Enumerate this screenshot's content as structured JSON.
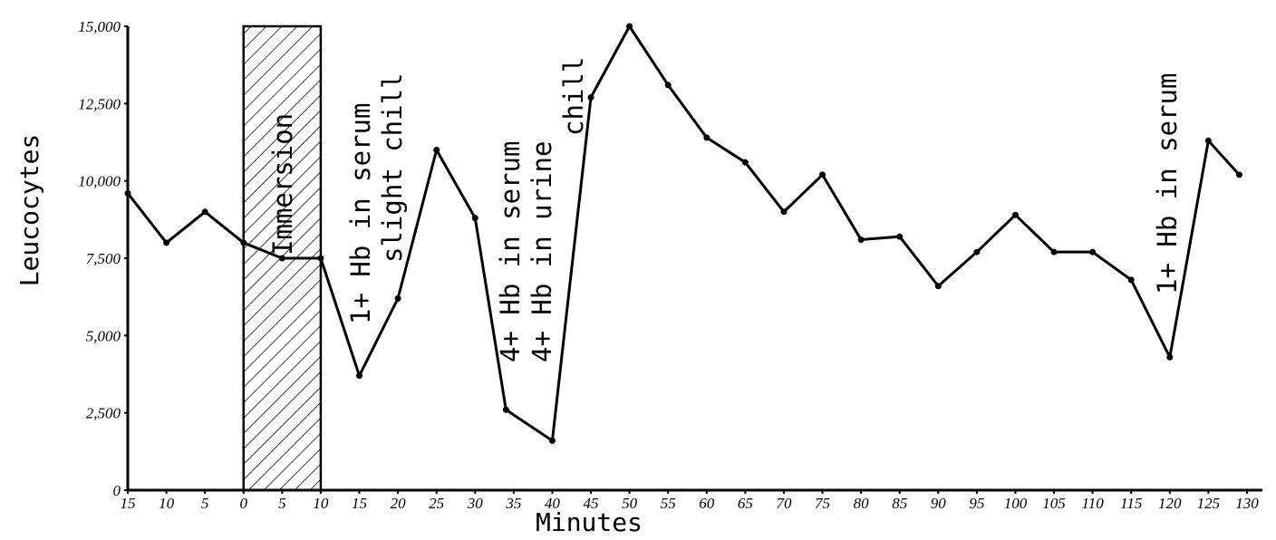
{
  "chart_data": {
    "type": "line",
    "xlabel": "Minutes",
    "ylabel": "Leucocytes",
    "x": [
      -15,
      -10,
      -5,
      0,
      5,
      10,
      15,
      20,
      25,
      30,
      34,
      40,
      45,
      50,
      55,
      60,
      65,
      70,
      75,
      80,
      85,
      90,
      95,
      100,
      105,
      110,
      115,
      120,
      125,
      129
    ],
    "series": [
      {
        "color": "#000000",
        "values": [
          9600,
          8000,
          9000,
          8000,
          7500,
          7500,
          3700,
          6200,
          11000,
          8800,
          2600,
          1600,
          12700,
          15000,
          13100,
          11400,
          10600,
          9000,
          10200,
          8100,
          8200,
          6600,
          7700,
          8900,
          7700,
          7700,
          6800,
          4300,
          11300,
          10200
        ]
      }
    ],
    "xlim": [
      -15,
      132
    ],
    "ylim": [
      0,
      15000
    ],
    "xticks": [
      {
        "value": -15,
        "label": "15"
      },
      {
        "value": -10,
        "label": "10"
      },
      {
        "value": -5,
        "label": "5"
      },
      0,
      5,
      10,
      15,
      20,
      25,
      30,
      35,
      40,
      45,
      50,
      55,
      60,
      65,
      70,
      75,
      80,
      85,
      90,
      95,
      100,
      105,
      110,
      115,
      120,
      125,
      130
    ],
    "yticks": [
      0,
      {
        "value": 2500,
        "label": "2,500"
      },
      {
        "value": 5000,
        "label": "5,000"
      },
      {
        "value": 7500,
        "label": "7,500"
      },
      {
        "value": 10000,
        "label": "10,000"
      },
      {
        "value": 12500,
        "label": "12,500"
      },
      {
        "value": 15000,
        "label": "15,000"
      }
    ],
    "shaded_span": [
      0,
      10
    ],
    "annotations": [
      {
        "text": "Immersion"
      },
      {
        "text": "1+ Hb in serum"
      },
      {
        "text": "slight chill"
      },
      {
        "text": "4+ Hb in serum"
      },
      {
        "text": "4+ Hb in urine"
      },
      {
        "text": "chill"
      },
      {
        "text": "1+ Hb in serum"
      }
    ]
  }
}
